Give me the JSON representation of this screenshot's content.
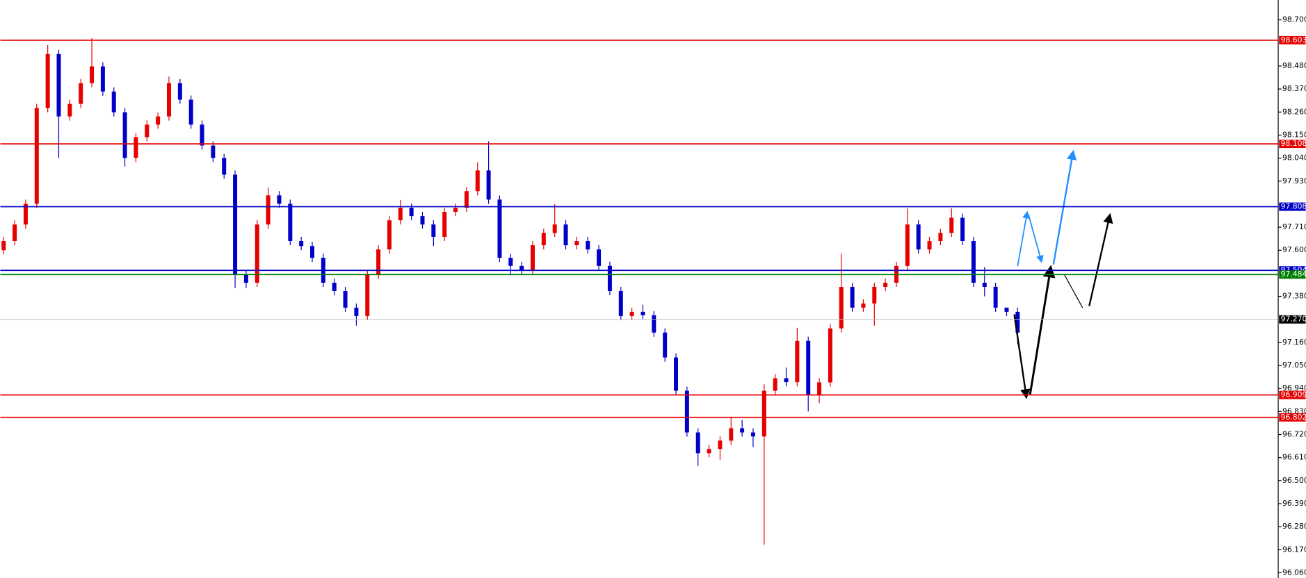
{
  "chart_data": {
    "type": "candlestick",
    "up_color": "#e60000",
    "down_color": "#0000c8",
    "ylim": [
      96.035,
      98.795
    ],
    "yticks": [
      {
        "value": 98.7,
        "label": "98.700"
      },
      {
        "value": 98.48,
        "label": "98.480"
      },
      {
        "value": 98.37,
        "label": "98.370"
      },
      {
        "value": 98.26,
        "label": "98.260"
      },
      {
        "value": 98.15,
        "label": "98.150"
      },
      {
        "value": 98.04,
        "label": "98.040"
      },
      {
        "value": 97.93,
        "label": "97.930"
      },
      {
        "value": 97.71,
        "label": "97.710"
      },
      {
        "value": 97.6,
        "label": "97.600"
      },
      {
        "value": 97.38,
        "label": "97.380"
      },
      {
        "value": 97.16,
        "label": "97.160"
      },
      {
        "value": 97.05,
        "label": "97.050"
      },
      {
        "value": 96.94,
        "label": "96.940"
      },
      {
        "value": 96.83,
        "label": "96.830"
      },
      {
        "value": 96.72,
        "label": "96.720"
      },
      {
        "value": 96.61,
        "label": "96.610"
      },
      {
        "value": 96.5,
        "label": "96.500"
      },
      {
        "value": 96.39,
        "label": "96.390"
      },
      {
        "value": 96.28,
        "label": "96.280"
      },
      {
        "value": 96.17,
        "label": "96.170"
      },
      {
        "value": 96.06,
        "label": "96.060"
      }
    ],
    "levels": [
      {
        "value": 98.603,
        "label": "98.603",
        "color": "#e60000"
      },
      {
        "value": 98.108,
        "label": "98.108",
        "color": "#e60000"
      },
      {
        "value": 97.808,
        "label": "97.808",
        "color": "#0000c8"
      },
      {
        "value": 97.504,
        "label": "97.504",
        "color": "#0000c8"
      },
      {
        "value": 97.484,
        "label": "97.484",
        "color": "#008000"
      },
      {
        "value": 97.27,
        "label": "97.270",
        "color": "#000000"
      },
      {
        "value": 96.909,
        "label": "96.909",
        "color": "#e60000"
      },
      {
        "value": 96.802,
        "label": "96.802",
        "color": "#e60000"
      }
    ],
    "open": [
      97.6,
      97.644,
      97.723,
      97.822,
      98.279,
      98.537,
      98.239,
      98.299,
      98.398,
      98.478,
      98.358,
      98.259,
      98.041,
      98.14,
      98.2,
      98.239,
      98.398,
      98.319,
      98.2,
      98.1,
      98.041,
      97.961,
      97.485,
      97.445,
      97.723,
      97.862,
      97.822,
      97.644,
      97.62,
      97.564,
      97.445,
      97.405,
      97.326,
      97.286,
      97.485,
      97.604,
      97.743,
      97.803,
      97.763,
      97.723,
      97.664,
      97.783,
      97.803,
      97.882,
      97.981,
      97.842,
      97.564,
      97.525,
      97.505,
      97.624,
      97.683,
      97.723,
      97.624,
      97.644,
      97.604,
      97.525,
      97.405,
      97.286,
      97.306,
      97.29,
      97.207,
      97.088,
      96.929,
      96.73,
      96.631,
      96.651,
      96.691,
      96.75,
      96.73,
      96.711,
      96.929,
      96.989,
      96.97,
      97.167,
      96.909,
      96.969,
      97.227,
      97.425,
      97.326,
      97.346,
      97.425,
      97.445,
      97.525,
      97.723,
      97.604,
      97.644,
      97.683,
      97.755,
      97.644,
      97.445,
      97.425,
      97.326,
      97.306
    ],
    "high": [
      97.664,
      97.743,
      97.842,
      98.299,
      98.58,
      98.557,
      98.319,
      98.418,
      98.613,
      98.498,
      98.378,
      98.279,
      98.16,
      98.22,
      98.259,
      98.43,
      98.418,
      98.339,
      98.22,
      98.12,
      98.061,
      97.981,
      97.505,
      97.743,
      97.9,
      97.882,
      97.842,
      97.664,
      97.64,
      97.584,
      97.465,
      97.425,
      97.346,
      97.505,
      97.624,
      97.763,
      97.84,
      97.823,
      97.783,
      97.743,
      97.803,
      97.823,
      97.902,
      98.02,
      98.12,
      97.862,
      97.584,
      97.545,
      97.644,
      97.703,
      97.82,
      97.743,
      97.664,
      97.664,
      97.624,
      97.545,
      97.425,
      97.326,
      97.34,
      97.31,
      97.227,
      97.108,
      96.949,
      96.75,
      96.671,
      96.711,
      96.8,
      96.79,
      96.75,
      96.96,
      97.009,
      97.04,
      97.23,
      97.187,
      96.989,
      97.247,
      97.584,
      97.445,
      97.366,
      97.445,
      97.465,
      97.545,
      97.8,
      97.743,
      97.664,
      97.703,
      97.8,
      97.775,
      97.664,
      97.52,
      97.445,
      97.326,
      97.326
    ],
    "low": [
      97.58,
      97.624,
      97.703,
      97.802,
      98.259,
      98.041,
      98.219,
      98.279,
      98.378,
      98.338,
      98.239,
      98.0,
      98.021,
      98.12,
      98.18,
      98.219,
      98.299,
      98.18,
      98.08,
      98.021,
      97.941,
      97.42,
      97.42,
      97.425,
      97.703,
      97.802,
      97.624,
      97.6,
      97.544,
      97.425,
      97.385,
      97.306,
      97.24,
      97.266,
      97.465,
      97.584,
      97.723,
      97.743,
      97.703,
      97.62,
      97.644,
      97.763,
      97.783,
      97.862,
      97.822,
      97.544,
      97.48,
      97.485,
      97.485,
      97.604,
      97.663,
      97.604,
      97.604,
      97.584,
      97.505,
      97.385,
      97.266,
      97.266,
      97.27,
      97.187,
      97.068,
      96.909,
      96.71,
      96.57,
      96.611,
      96.6,
      96.671,
      96.71,
      96.66,
      96.194,
      96.909,
      96.95,
      96.95,
      96.83,
      96.87,
      96.949,
      97.207,
      97.306,
      97.306,
      97.24,
      97.405,
      97.425,
      97.505,
      97.584,
      97.584,
      97.624,
      97.663,
      97.624,
      97.425,
      97.38,
      97.306,
      97.286,
      97.15
    ],
    "close": [
      97.644,
      97.723,
      97.822,
      98.279,
      98.537,
      98.239,
      98.299,
      98.398,
      98.478,
      98.358,
      98.259,
      98.041,
      98.14,
      98.2,
      98.239,
      98.398,
      98.319,
      98.2,
      98.1,
      98.041,
      97.961,
      97.485,
      97.445,
      97.723,
      97.862,
      97.822,
      97.644,
      97.62,
      97.564,
      97.445,
      97.405,
      97.326,
      97.286,
      97.485,
      97.604,
      97.743,
      97.803,
      97.763,
      97.723,
      97.664,
      97.783,
      97.803,
      97.882,
      97.981,
      97.842,
      97.564,
      97.525,
      97.505,
      97.624,
      97.683,
      97.723,
      97.624,
      97.644,
      97.604,
      97.525,
      97.405,
      97.286,
      97.306,
      97.29,
      97.207,
      97.088,
      96.929,
      96.73,
      96.631,
      96.651,
      96.691,
      96.75,
      96.73,
      96.711,
      96.929,
      96.989,
      96.97,
      97.167,
      96.909,
      96.969,
      97.227,
      97.425,
      97.326,
      97.346,
      97.425,
      97.445,
      97.525,
      97.723,
      97.604,
      97.644,
      97.683,
      97.755,
      97.644,
      97.445,
      97.425,
      97.326,
      97.306,
      97.207
    ]
  }
}
